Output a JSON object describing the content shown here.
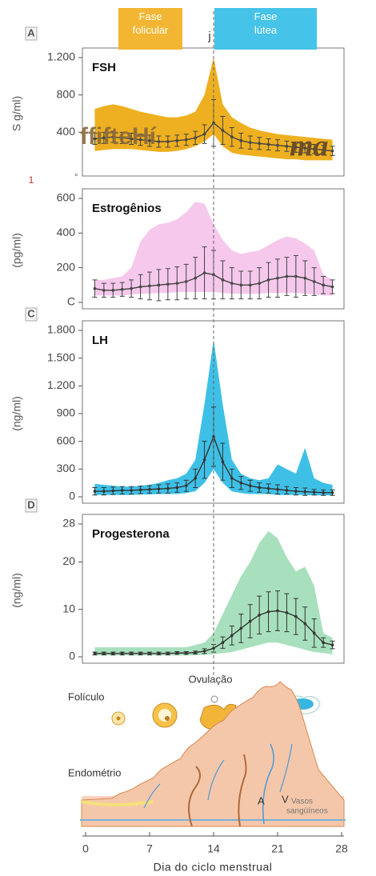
{
  "phases": [
    {
      "label": "Fase\nfolicular",
      "color": "#f2b632"
    },
    {
      "label": "Fase\nlútea",
      "color": "#45c3e8"
    }
  ],
  "marker": "j",
  "ovulation_day": 14,
  "x_axis": {
    "label": "Dia do ciclo menstrual",
    "xlim": [
      0,
      28
    ],
    "xticks": [
      0,
      7,
      14,
      21,
      28
    ]
  },
  "chart_data": [
    {
      "type": "line",
      "panel": "A",
      "title": "FSH",
      "ylabel": "S g/ml)",
      "ylim": [
        0,
        1200
      ],
      "yticks": [
        400,
        800,
        {
          "value": 1200,
          "label": "1.200"
        }
      ],
      "color": "#eeb021",
      "line_color": "#444",
      "annotations": [
        "ffifteHí",
        "ma"
      ],
      "x": [
        1,
        2,
        3,
        4,
        5,
        6,
        7,
        8,
        9,
        10,
        11,
        12,
        13,
        14,
        15,
        16,
        17,
        18,
        19,
        20,
        21,
        22,
        23,
        24,
        25,
        26,
        27
      ],
      "band_high": [
        650,
        680,
        700,
        680,
        650,
        620,
        600,
        580,
        560,
        560,
        580,
        620,
        800,
        1200,
        700,
        560,
        500,
        450,
        420,
        400,
        380,
        370,
        360,
        350,
        340,
        330,
        320
      ],
      "band_low": [
        200,
        210,
        220,
        220,
        220,
        210,
        200,
        190,
        190,
        200,
        220,
        250,
        300,
        380,
        250,
        180,
        160,
        150,
        140,
        130,
        120,
        110,
        110,
        100,
        100,
        100,
        100
      ],
      "values": [
        330,
        340,
        350,
        340,
        330,
        320,
        310,
        300,
        300,
        310,
        320,
        340,
        380,
        500,
        420,
        350,
        310,
        290,
        280,
        270,
        260,
        250,
        240,
        230,
        220,
        210,
        200
      ],
      "errors": [
        60,
        60,
        60,
        60,
        60,
        60,
        60,
        60,
        60,
        60,
        60,
        70,
        100,
        250,
        150,
        100,
        80,
        70,
        65,
        60,
        60,
        55,
        55,
        50,
        50,
        50,
        50
      ]
    },
    {
      "type": "line",
      "panel": "1",
      "title": "Estrogênios",
      "ylabel": "(pg/ml)",
      "ylim": [
        0,
        600
      ],
      "yticks": [
        {
          "value": 0,
          "label": "C"
        },
        200,
        400,
        600
      ],
      "color": "#f5c8ec",
      "line_color": "#444",
      "annotations": [
        "°"
      ],
      "x": [
        1,
        2,
        3,
        4,
        5,
        6,
        7,
        8,
        9,
        10,
        11,
        12,
        13,
        14,
        15,
        16,
        17,
        18,
        19,
        20,
        21,
        22,
        23,
        24,
        25,
        26,
        27
      ],
      "band_high": [
        130,
        130,
        140,
        150,
        200,
        350,
        420,
        450,
        460,
        480,
        520,
        580,
        570,
        450,
        360,
        300,
        280,
        290,
        300,
        330,
        360,
        380,
        370,
        340,
        300,
        160,
        130
      ],
      "band_low": [
        40,
        40,
        40,
        40,
        45,
        50,
        50,
        55,
        55,
        60,
        60,
        60,
        60,
        60,
        55,
        50,
        50,
        50,
        50,
        55,
        55,
        55,
        55,
        50,
        45,
        40,
        40
      ],
      "values": [
        80,
        70,
        70,
        75,
        80,
        90,
        95,
        100,
        105,
        110,
        120,
        140,
        170,
        160,
        130,
        110,
        100,
        100,
        110,
        130,
        140,
        150,
        150,
        140,
        120,
        100,
        90
      ],
      "errors": [
        50,
        40,
        40,
        40,
        50,
        70,
        80,
        90,
        90,
        95,
        100,
        120,
        150,
        140,
        110,
        90,
        80,
        80,
        90,
        100,
        110,
        110,
        120,
        100,
        80,
        50,
        40
      ]
    },
    {
      "type": "line",
      "panel": "C",
      "title": "LH",
      "ylabel": "(ng/ml)",
      "ylim": [
        0,
        1800
      ],
      "yticks": [
        0,
        300,
        600,
        900,
        {
          "value": 1200,
          "label": "1.200"
        },
        {
          "value": 1500,
          "label": "1.500"
        },
        {
          "value": 1800,
          "label": "1.800"
        }
      ],
      "color": "#3ec0e6",
      "line_color": "#333",
      "x": [
        1,
        2,
        3,
        4,
        5,
        6,
        7,
        8,
        9,
        10,
        11,
        12,
        13,
        14,
        15,
        16,
        17,
        18,
        19,
        20,
        21,
        22,
        23,
        24,
        25,
        26,
        27
      ],
      "band_high": [
        140,
        130,
        120,
        110,
        110,
        120,
        130,
        150,
        180,
        200,
        250,
        400,
        1000,
        1700,
        1000,
        400,
        250,
        200,
        180,
        200,
        350,
        300,
        250,
        530,
        200,
        150,
        130
      ],
      "band_low": [
        20,
        20,
        20,
        20,
        20,
        25,
        25,
        30,
        30,
        30,
        40,
        60,
        150,
        300,
        150,
        60,
        40,
        30,
        30,
        30,
        20,
        20,
        20,
        20,
        15,
        15,
        15
      ],
      "values": [
        60,
        60,
        65,
        70,
        70,
        75,
        80,
        85,
        90,
        100,
        120,
        200,
        400,
        650,
        380,
        200,
        150,
        120,
        100,
        90,
        80,
        70,
        60,
        55,
        50,
        45,
        45
      ],
      "errors": [
        40,
        40,
        40,
        40,
        40,
        40,
        40,
        45,
        50,
        50,
        60,
        100,
        200,
        320,
        200,
        100,
        70,
        60,
        50,
        50,
        50,
        40,
        40,
        40,
        30,
        30,
        30
      ]
    },
    {
      "type": "line",
      "panel": "D",
      "title": "Progesterona",
      "ylabel": "(ng/ml)",
      "ylim": [
        0,
        28
      ],
      "yticks": [
        0,
        10,
        20,
        28
      ],
      "color": "#a8e0bd",
      "line_color": "#333",
      "x": [
        1,
        2,
        3,
        4,
        5,
        6,
        7,
        8,
        9,
        10,
        11,
        12,
        13,
        14,
        15,
        16,
        17,
        18,
        19,
        20,
        21,
        22,
        23,
        24,
        25,
        26,
        27
      ],
      "band_high": [
        2,
        2,
        2,
        2,
        2,
        2,
        2,
        2,
        2,
        2,
        2,
        2.5,
        3,
        5,
        9,
        13,
        17,
        20,
        24,
        26.5,
        25,
        21,
        18,
        19,
        15,
        5,
        4
      ],
      "band_low": [
        0.3,
        0.3,
        0.3,
        0.3,
        0.3,
        0.3,
        0.3,
        0.3,
        0.3,
        0.3,
        0.3,
        0.3,
        0.4,
        0.5,
        0.8,
        1,
        1.5,
        2,
        2.5,
        3,
        3,
        2.5,
        2,
        1.5,
        1,
        0.8,
        0.5
      ],
      "values": [
        0.7,
        0.7,
        0.7,
        0.7,
        0.7,
        0.7,
        0.7,
        0.7,
        0.7,
        0.8,
        0.8,
        0.9,
        1.2,
        1.8,
        3,
        4.5,
        6,
        7.5,
        8.8,
        9.5,
        9.7,
        9.3,
        8.5,
        7,
        5,
        3,
        2.5
      ],
      "errors": [
        0.3,
        0.3,
        0.3,
        0.3,
        0.3,
        0.3,
        0.3,
        0.3,
        0.3,
        0.3,
        0.3,
        0.3,
        0.5,
        0.8,
        1.2,
        2,
        3,
        3.5,
        4,
        4.2,
        4.2,
        4,
        3.8,
        3.5,
        3,
        1,
        0.8
      ]
    }
  ],
  "illustrations": {
    "follicle": "Folículo",
    "ovulation": "Ovulação",
    "endometrium": "Endométrio",
    "artery": "A",
    "vein": "V",
    "vessels": [
      "Vasos",
      "sangüíneos"
    ]
  }
}
